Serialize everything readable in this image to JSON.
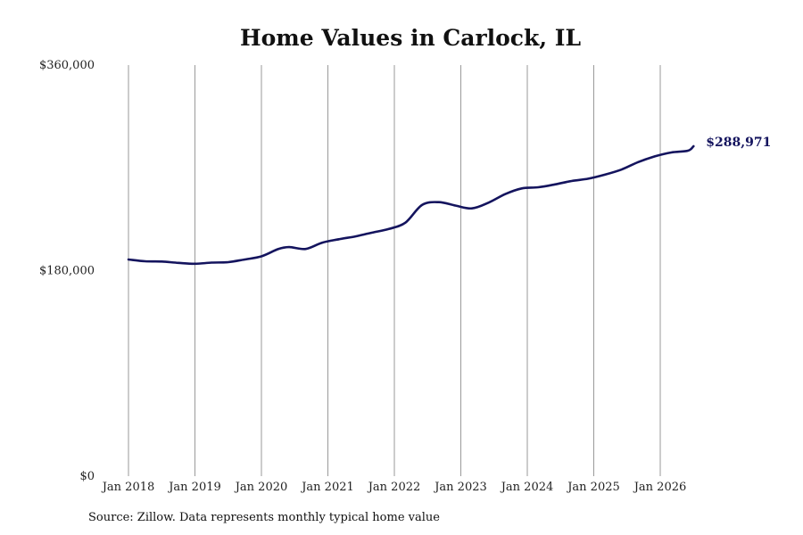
{
  "chart_data": {
    "type": "line",
    "title": "Home Values in Carlock, IL",
    "xlabel": "",
    "ylabel": "",
    "ylim": [
      0,
      360000
    ],
    "yticks": [
      "$360,000",
      "$180,000",
      "$0"
    ],
    "ytick_values": [
      360000,
      180000,
      0
    ],
    "xticks": [
      "Jan 2018",
      "Jan 2019",
      "Jan 2020",
      "Jan 2021",
      "Jan 2022",
      "Jan 2023",
      "Jan 2024",
      "Jan 2025",
      "Jan 2026"
    ],
    "grid": "vertical",
    "line_color": "#14145e",
    "end_label": "$288,971",
    "series": [
      {
        "x": [
          "2018-01",
          "2018-04",
          "2018-07",
          "2018-10",
          "2019-01",
          "2019-04",
          "2019-07",
          "2019-10",
          "2020-01",
          "2020-04",
          "2020-06",
          "2020-09",
          "2020-12",
          "2021-03",
          "2021-06",
          "2021-09",
          "2021-12",
          "2022-03",
          "2022-06",
          "2022-09",
          "2022-12",
          "2023-03",
          "2023-06",
          "2023-09",
          "2023-12",
          "2024-03",
          "2024-06",
          "2024-09",
          "2024-12",
          "2025-03",
          "2025-06",
          "2025-09",
          "2025-12",
          "2026-03",
          "2026-06",
          "2026-07"
        ],
        "values": [
          189800,
          188200,
          188000,
          186800,
          186000,
          187000,
          187400,
          189800,
          192500,
          198800,
          200600,
          199000,
          204500,
          207500,
          210000,
          213300,
          216500,
          222000,
          237500,
          240000,
          237000,
          234500,
          239500,
          247000,
          252000,
          253000,
          255500,
          258500,
          260500,
          264000,
          268500,
          275000,
          280000,
          283500,
          285000,
          288971
        ]
      }
    ]
  },
  "source_text": "Source: Zillow. Data represents monthly typical home value"
}
